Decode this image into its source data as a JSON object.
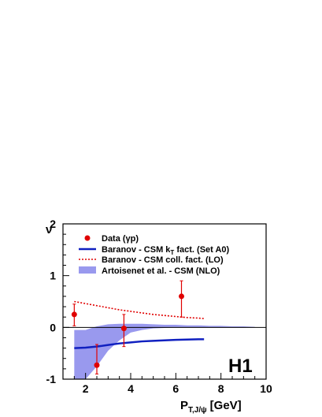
{
  "chart_data": {
    "type": "line",
    "xlabel": "P",
    "xlabel_sub": "T,J/ψ",
    "xlabel_unit": "[GeV]",
    "ylabel": "ν",
    "xlim": [
      1,
      10
    ],
    "ylim": [
      -1,
      2
    ],
    "xticks": [
      2,
      4,
      6,
      8,
      10
    ],
    "yticks": [
      -1,
      0,
      1,
      2
    ],
    "experiment_label": "H1",
    "legend_position": "top-left",
    "colors": {
      "data": "#e00000",
      "kt": "#1020c0",
      "coll": "#e00000",
      "band": "#9999ee"
    },
    "data_points": {
      "name": "Data (γp)",
      "points": [
        {
          "x": 1.5,
          "y": 0.25,
          "yerr_low": 0.22,
          "yerr_high": 0.2
        },
        {
          "x": 2.5,
          "y": -0.73,
          "yerr_low": 0.17,
          "yerr_high": 0.4
        },
        {
          "x": 3.7,
          "y": -0.02,
          "yerr_low": 0.35,
          "yerr_high": 0.27
        },
        {
          "x": 6.25,
          "y": 0.6,
          "yerr_low": 0.4,
          "yerr_high": 0.3
        }
      ]
    },
    "series": [
      {
        "name_prefix": "Baranov - CSM k",
        "name_sub": "T",
        "name_suffix": " fact. (Set A0)",
        "style": "solid",
        "x": [
          1.5,
          2,
          2.5,
          3,
          3.5,
          4,
          4.5,
          5,
          5.5,
          6,
          6.5,
          7,
          7.25
        ],
        "y": [
          -0.4,
          -0.39,
          -0.37,
          -0.34,
          -0.31,
          -0.29,
          -0.27,
          -0.26,
          -0.25,
          -0.24,
          -0.235,
          -0.23,
          -0.23
        ]
      },
      {
        "name": "Baranov - CSM coll. fact. (LO)",
        "style": "dotted",
        "x": [
          1.5,
          2,
          2.5,
          3,
          3.5,
          4,
          4.5,
          5,
          5.5,
          6,
          6.5,
          7,
          7.25
        ],
        "y": [
          0.5,
          0.46,
          0.42,
          0.38,
          0.34,
          0.31,
          0.28,
          0.25,
          0.23,
          0.21,
          0.19,
          0.18,
          0.17
        ]
      }
    ],
    "band": {
      "name": "Artoisenet et al. - CSM (NLO)",
      "x": [
        1.5,
        2,
        2.5,
        3,
        3.5,
        4,
        4.5,
        5,
        5.5,
        6,
        6.5,
        7,
        7.5,
        8,
        8.5,
        9,
        9.5
      ],
      "upper": [
        -0.05,
        -0.05,
        0.02,
        0.06,
        0.07,
        0.07,
        0.07,
        0.06,
        0.05,
        0.05,
        0.04,
        0.04,
        0.03,
        0.03,
        0.02,
        0.02,
        0.01
      ],
      "lower": [
        -1.0,
        -1.0,
        -0.75,
        -0.45,
        -0.25,
        -0.1,
        -0.05,
        -0.02,
        -0.01,
        0.0,
        0.0,
        0.0,
        0.0,
        0.0,
        0.0,
        0.0,
        0.005
      ]
    }
  }
}
